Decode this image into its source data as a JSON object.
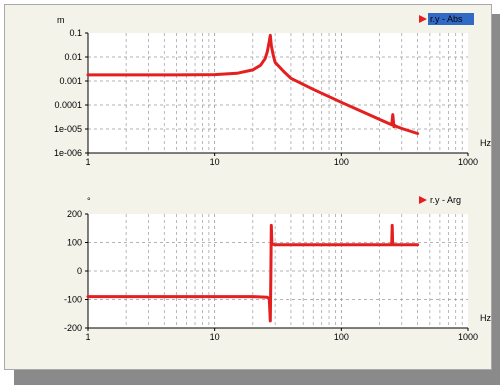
{
  "chart_data": [
    {
      "type": "line",
      "y_unit": "m",
      "x_unit": "Hz",
      "xscale": "log",
      "yscale": "log",
      "xlim": [
        1,
        1000
      ],
      "ylim": [
        1e-06,
        0.1
      ],
      "x_ticks": [
        "1",
        "10",
        "100",
        "1000"
      ],
      "y_ticks": [
        "0.1",
        "0.01",
        "0.001",
        "0.0001",
        "1e-005",
        "1e-006"
      ],
      "legend": "r.y - Abs",
      "legend_highlighted": true,
      "legend_position": "top-right",
      "grid": true,
      "series": [
        {
          "name": "r.y - Abs",
          "color": "#e41f1f",
          "x": [
            1,
            5,
            10,
            15,
            20,
            23,
            25,
            26,
            27,
            27.5,
            28,
            29,
            30,
            35,
            40,
            60,
            100,
            150,
            200,
            250,
            255,
            260,
            265,
            270,
            300,
            400
          ],
          "y": [
            0.0018,
            0.0018,
            0.00185,
            0.0021,
            0.0029,
            0.0045,
            0.0085,
            0.016,
            0.045,
            0.08,
            0.03,
            0.012,
            0.006,
            0.0025,
            0.0013,
            0.00045,
            0.00013,
            5e-05,
            2.5e-05,
            1.5e-05,
            4e-05,
            1.25e-05,
            1.4e-05,
            1.3e-05,
            1.05e-05,
            6.5e-06
          ]
        }
      ]
    },
    {
      "type": "line",
      "y_unit": "°",
      "x_unit": "Hz",
      "xscale": "log",
      "xlim": [
        1,
        1000
      ],
      "ylim": [
        -200,
        200
      ],
      "x_ticks": [
        "1",
        "10",
        "100",
        "1000"
      ],
      "y_ticks": [
        "200",
        "100",
        "0",
        "-100",
        "-200"
      ],
      "legend": "r.y - Arg",
      "legend_position": "top-right",
      "grid": true,
      "series": [
        {
          "name": "r.y - Arg",
          "color": "#e41f1f",
          "x": [
            1,
            10,
            20,
            26,
            27,
            27.5,
            27.8,
            28,
            28.3,
            30,
            100,
            240,
            250,
            252,
            254,
            255,
            257,
            260,
            300,
            400
          ],
          "y": [
            -90,
            -90,
            -90,
            -92,
            -98,
            -175,
            0,
            160,
            95,
            92,
            92,
            92,
            92,
            160,
            100,
            92,
            92,
            92,
            92,
            92
          ]
        }
      ]
    }
  ]
}
